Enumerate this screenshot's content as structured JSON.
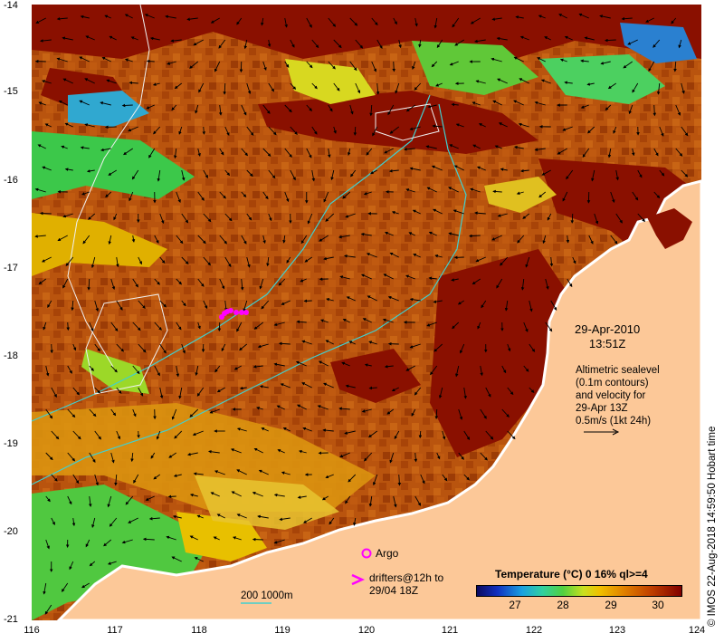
{
  "map": {
    "x_ticks": [
      "116",
      "117",
      "118",
      "119",
      "120",
      "121",
      "122",
      "123",
      "124"
    ],
    "y_ticks": [
      "-14",
      "-15",
      "-16",
      "-17",
      "-18",
      "-19",
      "-20",
      "-21"
    ]
  },
  "annotations": {
    "date": "29-Apr-2010",
    "time": "13:51Z",
    "altimetry_lines": [
      "Altimetric sealevel",
      "(0.1m contours)",
      "and velocity for",
      "29-Apr 13Z",
      "0.5m/s (1kt 24h)"
    ]
  },
  "legend": {
    "argo_label": "Argo",
    "drifters_line1": "drifters@12h to",
    "drifters_line2": "29/04 18Z",
    "contour_label": "200  1000m",
    "colorbar_title": "Temperature (°C) 0 16% ql>=4",
    "colorbar_ticks": [
      "27",
      "28",
      "29",
      "30"
    ]
  },
  "credit": "© IMOS 22-Aug-2018 14:59:50 Hobart time",
  "colors": {
    "land": "#fcc898",
    "sst_warm": "#b04a0a",
    "sst_hot": "#8a1000",
    "contour": "#40d0d0",
    "drifter": "#ff00ff"
  }
}
